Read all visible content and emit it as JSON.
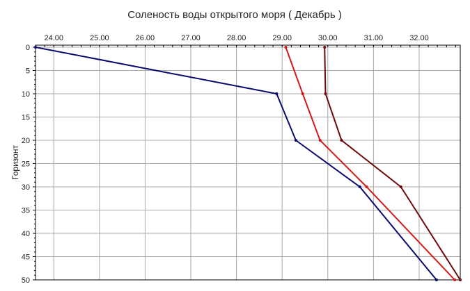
{
  "chart_data": {
    "type": "line",
    "title": "Соленость воды открытого моря    ( Декабрь )",
    "ylabel": "Горизонт",
    "xlabel": "",
    "xlim": [
      23.6,
      32.9
    ],
    "ylim": [
      0,
      50
    ],
    "y_inverted": true,
    "x_axis_position": "top",
    "grid": true,
    "x_ticks": [
      "24.00",
      "25.00",
      "26.00",
      "27.00",
      "28.00",
      "29.00",
      "30.00",
      "31.00",
      "32.00"
    ],
    "x_tick_values": [
      24,
      25,
      26,
      27,
      28,
      29,
      30,
      31,
      32
    ],
    "y_ticks": [
      "0",
      "5",
      "10",
      "15",
      "20",
      "25",
      "30",
      "35",
      "40",
      "45",
      "50"
    ],
    "y_tick_values": [
      0,
      5,
      10,
      15,
      20,
      25,
      30,
      35,
      40,
      45,
      50
    ],
    "series": [
      {
        "color": "#0a0a6e",
        "points": [
          [
            23.6,
            0
          ],
          [
            28.88,
            10
          ],
          [
            29.3,
            20
          ],
          [
            30.7,
            30
          ],
          [
            32.38,
            50
          ]
        ]
      },
      {
        "color": "#d21a1a",
        "points": [
          [
            29.08,
            0
          ],
          [
            29.45,
            10
          ],
          [
            29.83,
            20
          ],
          [
            30.85,
            30
          ],
          [
            32.78,
            50
          ]
        ]
      },
      {
        "color": "#6e0a0a",
        "points": [
          [
            29.93,
            0
          ],
          [
            29.95,
            10
          ],
          [
            30.3,
            20
          ],
          [
            31.6,
            30
          ],
          [
            32.9,
            50
          ]
        ]
      }
    ]
  }
}
